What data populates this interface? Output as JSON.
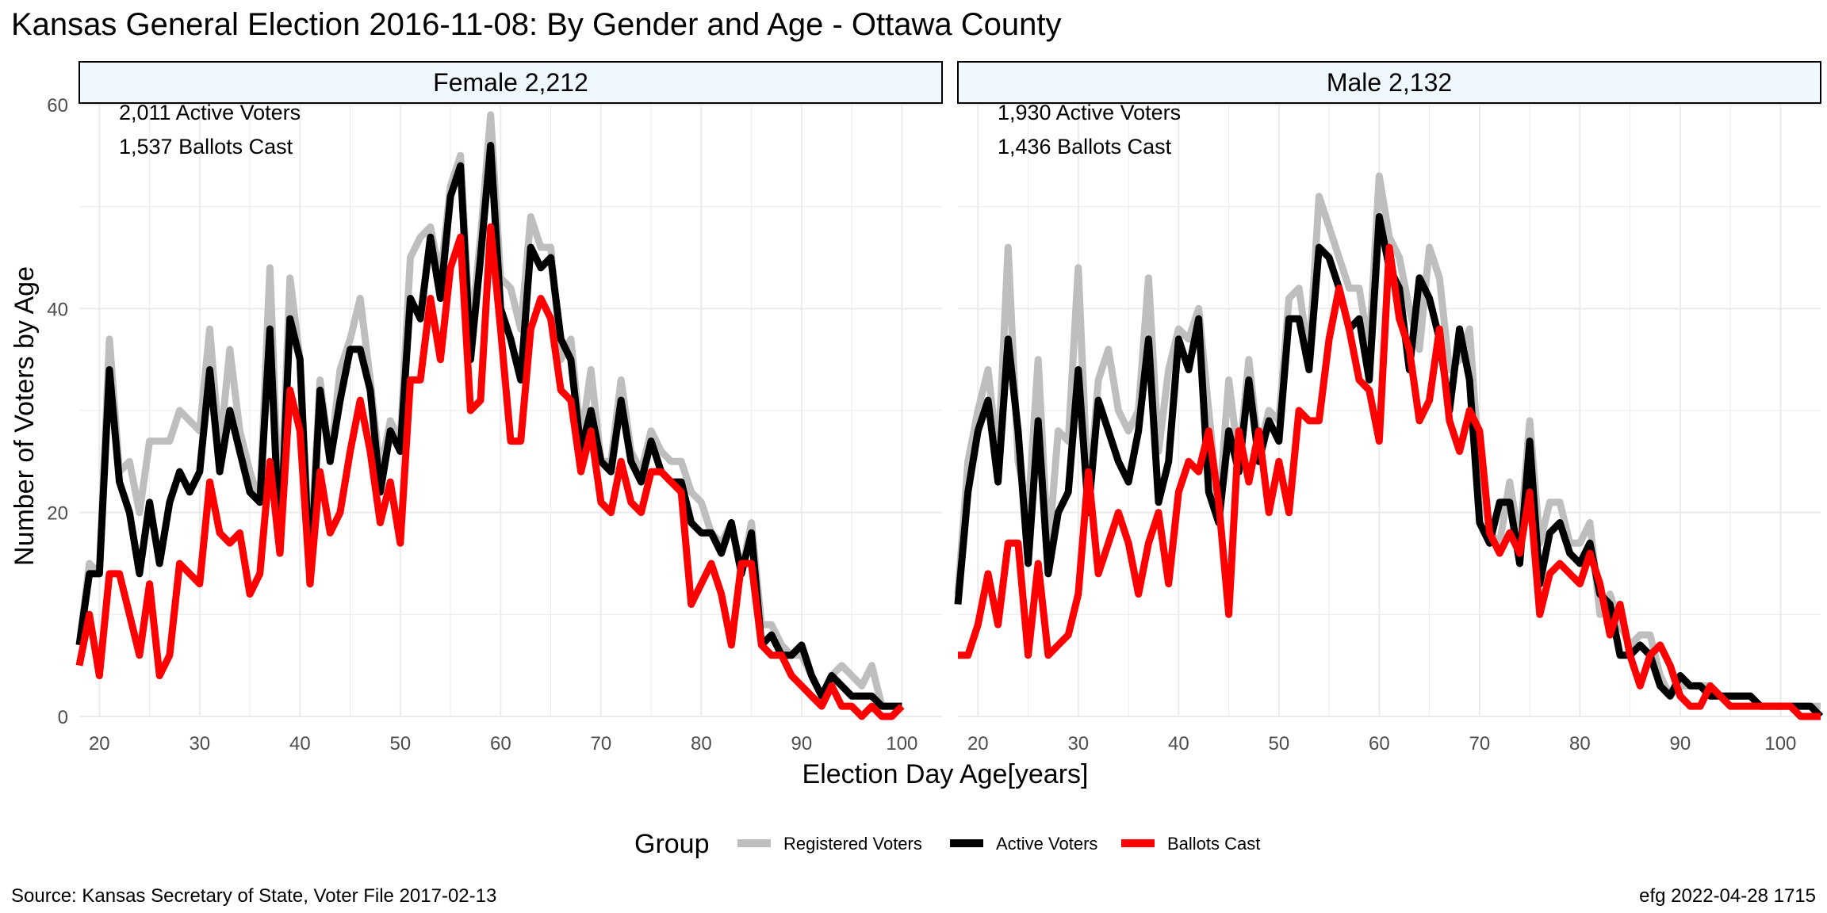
{
  "title": "Kansas General Election 2016-11-08:  By Gender and Age - Ottawa County",
  "source": "Source:  Kansas Secretary of State, Voter File  2017-02-13",
  "stamp": "efg 2022-04-28 1715",
  "colors": {
    "registered": "#bebebe",
    "active": "#000000",
    "ballots": "#ff0000",
    "strip_fill": "#f0f8ff",
    "grid": "#ebebeb"
  },
  "chart_data": {
    "type": "line",
    "xlabel": "Election Day Age[years]",
    "ylabel": "Number of Voters by Age",
    "xlim": [
      18,
      104
    ],
    "ylim": [
      0,
      60
    ],
    "x_ticks": [
      20,
      30,
      40,
      50,
      60,
      70,
      80,
      90,
      100
    ],
    "y_ticks": [
      0,
      20,
      40,
      60
    ],
    "grid": true,
    "legend": {
      "position": "bottom",
      "title": "Group",
      "items": [
        "Registered Voters",
        "Active Voters",
        "Ballots Cast"
      ]
    },
    "panels": [
      {
        "label": "Female 2,212",
        "annotations": [
          "2,011 Active Voters",
          "1,537 Ballots Cast"
        ],
        "x_start": 18,
        "series": [
          {
            "name": "Registered Voters",
            "values": [
              7,
              15,
              14,
              37,
              24,
              25,
              20,
              27,
              27,
              27,
              30,
              29,
              28,
              38,
              26,
              36,
              28,
              24,
              21,
              44,
              18,
              43,
              35,
              15,
              33,
              25,
              34,
              37,
              41,
              33,
              24,
              29,
              27,
              45,
              47,
              48,
              43,
              52,
              55,
              37,
              47,
              59,
              43,
              42,
              38,
              49,
              46,
              46,
              35,
              37,
              27,
              34,
              25,
              25,
              33,
              26,
              24,
              28,
              26,
              25,
              25,
              22,
              21,
              18,
              17,
              19,
              14,
              19,
              9,
              9,
              7,
              6,
              6,
              4,
              2,
              4,
              5,
              4,
              3,
              5,
              1,
              1,
              1
            ]
          },
          {
            "name": "Active Voters",
            "values": [
              7,
              14,
              14,
              34,
              23,
              20,
              14,
              21,
              15,
              21,
              24,
              22,
              24,
              34,
              24,
              30,
              26,
              22,
              21,
              38,
              16,
              39,
              35,
              13,
              32,
              25,
              31,
              36,
              36,
              32,
              22,
              28,
              26,
              41,
              39,
              47,
              41,
              51,
              54,
              35,
              45,
              56,
              40,
              37,
              33,
              46,
              44,
              45,
              37,
              35,
              26,
              30,
              25,
              24,
              31,
              25,
              23,
              27,
              24,
              23,
              23,
              19,
              18,
              18,
              16,
              19,
              14,
              18,
              7,
              8,
              6,
              6,
              7,
              4,
              2,
              4,
              3,
              2,
              2,
              2,
              1,
              1,
              1
            ]
          },
          {
            "name": "Ballots Cast",
            "values": [
              5,
              10,
              4,
              14,
              14,
              10,
              6,
              13,
              4,
              6,
              15,
              14,
              13,
              23,
              18,
              17,
              18,
              12,
              14,
              25,
              16,
              32,
              28,
              13,
              24,
              18,
              20,
              26,
              31,
              26,
              19,
              23,
              17,
              33,
              33,
              41,
              35,
              44,
              47,
              30,
              31,
              48,
              38,
              27,
              27,
              38,
              41,
              39,
              32,
              31,
              24,
              28,
              21,
              20,
              25,
              21,
              20,
              24,
              24,
              23,
              22,
              11,
              13,
              15,
              12,
              7,
              15,
              15,
              7,
              6,
              6,
              4,
              3,
              2,
              1,
              3,
              1,
              1,
              0,
              1,
              0,
              0,
              1
            ]
          }
        ]
      },
      {
        "label": "Male 2,132",
        "annotations": [
          "1,930 Active Voters",
          "1,436 Ballots Cast"
        ],
        "x_start": 18,
        "series": [
          {
            "name": "Registered Voters",
            "values": [
              12,
              25,
              30,
              34,
              25,
              46,
              25,
              20,
              35,
              16,
              28,
              27,
              44,
              21,
              33,
              36,
              30,
              28,
              30,
              43,
              26,
              34,
              38,
              37,
              40,
              30,
              20,
              33,
              25,
              35,
              26,
              30,
              29,
              41,
              42,
              35,
              51,
              48,
              45,
              42,
              42,
              36,
              53,
              47,
              45,
              40,
              36,
              46,
              43,
              34,
              35,
              38,
              24,
              18,
              17,
              23,
              17,
              29,
              17,
              21,
              21,
              17,
              17,
              19,
              10,
              12,
              9,
              7,
              8,
              8,
              4,
              2,
              3,
              3,
              3,
              3,
              2,
              2,
              2,
              2,
              1,
              1,
              1,
              1,
              1,
              1,
              1
            ]
          },
          {
            "name": "Active Voters",
            "values": [
              11,
              22,
              28,
              31,
              23,
              37,
              28,
              15,
              29,
              14,
              20,
              22,
              34,
              20,
              31,
              28,
              25,
              23,
              28,
              37,
              21,
              25,
              37,
              34,
              39,
              22,
              19,
              28,
              24,
              33,
              25,
              29,
              27,
              39,
              39,
              34,
              46,
              45,
              42,
              38,
              39,
              33,
              49,
              44,
              42,
              34,
              43,
              41,
              37,
              30,
              38,
              33,
              19,
              17,
              21,
              21,
              15,
              27,
              13,
              18,
              19,
              16,
              15,
              17,
              12,
              11,
              6,
              6,
              7,
              6,
              3,
              2,
              4,
              3,
              3,
              2,
              2,
              2,
              2,
              2,
              1,
              1,
              1,
              1,
              1,
              1,
              0
            ]
          },
          {
            "name": "Ballots Cast",
            "values": [
              6,
              6,
              9,
              14,
              9,
              17,
              17,
              6,
              15,
              6,
              7,
              8,
              12,
              24,
              14,
              17,
              20,
              17,
              12,
              17,
              20,
              13,
              22,
              25,
              24,
              28,
              21,
              10,
              28,
              23,
              28,
              20,
              25,
              20,
              30,
              29,
              29,
              37,
              42,
              38,
              33,
              32,
              27,
              46,
              39,
              36,
              29,
              31,
              38,
              29,
              26,
              30,
              28,
              18,
              16,
              18,
              16,
              22,
              10,
              14,
              15,
              14,
              13,
              16,
              13,
              8,
              11,
              6,
              3,
              6,
              7,
              5,
              2,
              1,
              1,
              3,
              2,
              1,
              1,
              1,
              1,
              1,
              1,
              1,
              0,
              0,
              0
            ]
          }
        ]
      }
    ]
  }
}
